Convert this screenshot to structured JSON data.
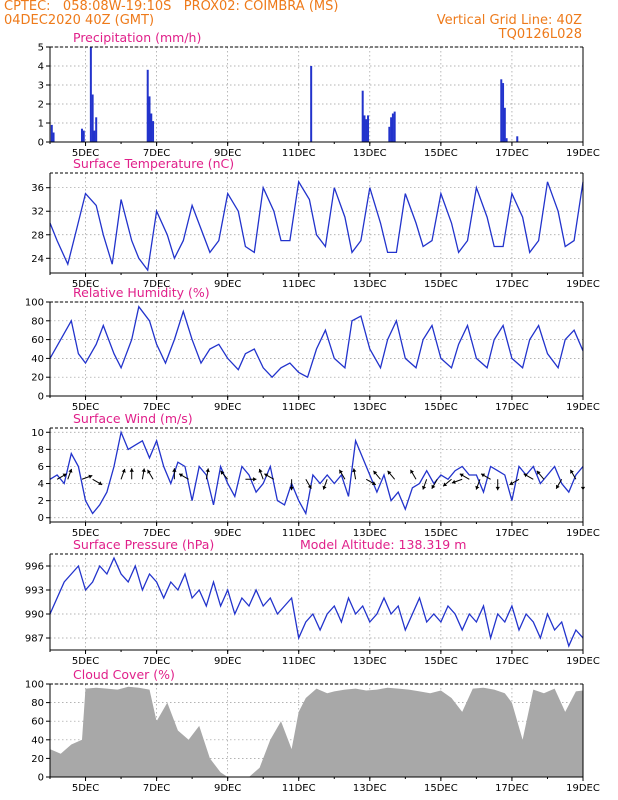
{
  "header": {
    "left1": "CPTEC:   058:08W-19:10S   PROX02: COIMBRA (MS)",
    "left2": "04DEC2020 40Z (GMT)",
    "right1": "Vertical Grid Line: 40Z",
    "right2": "TQ0126L028"
  },
  "x_axis": {
    "ticks": [
      "5DEC",
      "7DEC",
      "9DEC",
      "11DEC",
      "13DEC",
      "15DEC",
      "17DEC",
      "19DEC"
    ],
    "tick_days": [
      5,
      7,
      9,
      11,
      13,
      15,
      17,
      19
    ],
    "range": [
      4,
      19
    ]
  },
  "colors": {
    "title": "#e0208a",
    "header": "#ee7a1a",
    "series": "#2233cc",
    "cloud": "#a8a8a8"
  },
  "chart_data": [
    {
      "type": "bar",
      "title": "Precipitation (mm/h)",
      "ylim": [
        0,
        5
      ],
      "yticks": [
        0,
        1,
        2,
        3,
        4,
        5
      ],
      "x": [
        4.05,
        4.1,
        4.9,
        4.95,
        5.15,
        5.2,
        5.25,
        5.3,
        6.75,
        6.8,
        6.85,
        6.9,
        11.35,
        12.8,
        12.85,
        12.9,
        12.95,
        13.55,
        13.6,
        13.65,
        13.7,
        16.7,
        16.75,
        16.8,
        16.85,
        17.15
      ],
      "values": [
        0.9,
        0.5,
        0.7,
        0.6,
        5.0,
        2.5,
        0.6,
        1.3,
        3.8,
        2.4,
        1.5,
        1.1,
        4.0,
        2.7,
        1.4,
        1.2,
        1.4,
        0.8,
        1.3,
        1.5,
        1.6,
        3.3,
        3.1,
        1.8,
        0.2,
        0.3
      ]
    },
    {
      "type": "line",
      "title": "Surface Temperature (nC)",
      "ylim": [
        21.5,
        38.5
      ],
      "yticks": [
        24,
        28,
        32,
        36
      ],
      "x": [
        4,
        4.2,
        4.5,
        4.75,
        5,
        5.3,
        5.5,
        5.75,
        6,
        6.3,
        6.5,
        6.75,
        7,
        7.3,
        7.5,
        7.75,
        8,
        8.25,
        8.5,
        8.75,
        9,
        9.3,
        9.5,
        9.75,
        10,
        10.3,
        10.5,
        10.75,
        11,
        11.3,
        11.5,
        11.75,
        12,
        12.3,
        12.5,
        12.75,
        13,
        13.3,
        13.5,
        13.75,
        14,
        14.3,
        14.5,
        14.75,
        15,
        15.3,
        15.5,
        15.75,
        16,
        16.3,
        16.5,
        16.75,
        17,
        17.3,
        17.5,
        17.75,
        18,
        18.3,
        18.5,
        18.75,
        19
      ],
      "values": [
        30,
        27,
        23,
        29,
        35,
        33,
        28,
        23,
        34,
        27,
        24,
        22,
        32,
        28,
        24,
        27,
        33,
        29,
        25,
        27,
        35,
        32,
        26,
        25,
        36,
        32,
        27,
        27,
        37,
        34,
        28,
        26,
        36,
        31,
        25,
        27,
        36,
        30,
        25,
        25,
        35,
        30,
        26,
        27,
        35,
        30,
        25,
        27,
        36,
        31,
        26,
        26,
        35,
        31,
        25,
        27,
        37,
        32,
        26,
        27,
        37
      ]
    },
    {
      "type": "line",
      "title": "Relative Humidity (%)",
      "ylim": [
        0,
        100
      ],
      "yticks": [
        0,
        20,
        40,
        60,
        80,
        100
      ],
      "x": [
        4,
        4.3,
        4.6,
        4.8,
        5,
        5.3,
        5.5,
        5.8,
        6,
        6.3,
        6.5,
        6.8,
        7,
        7.25,
        7.5,
        7.75,
        8,
        8.25,
        8.5,
        8.75,
        9,
        9.3,
        9.5,
        9.75,
        10,
        10.25,
        10.5,
        10.75,
        11,
        11.25,
        11.5,
        11.75,
        12,
        12.3,
        12.5,
        12.75,
        13,
        13.3,
        13.5,
        13.75,
        14,
        14.3,
        14.5,
        14.75,
        15,
        15.3,
        15.5,
        15.75,
        16,
        16.3,
        16.5,
        16.75,
        17,
        17.3,
        17.5,
        17.75,
        18,
        18.3,
        18.5,
        18.75,
        19
      ],
      "values": [
        40,
        60,
        80,
        45,
        35,
        55,
        75,
        45,
        30,
        60,
        95,
        80,
        55,
        35,
        60,
        90,
        60,
        35,
        50,
        55,
        40,
        28,
        45,
        50,
        30,
        20,
        30,
        35,
        25,
        20,
        50,
        70,
        40,
        30,
        80,
        85,
        50,
        30,
        60,
        80,
        40,
        30,
        60,
        75,
        40,
        30,
        55,
        75,
        40,
        30,
        60,
        75,
        40,
        30,
        60,
        75,
        45,
        30,
        60,
        70,
        48
      ]
    },
    {
      "type": "line",
      "title": "Surface Wind (m/s)",
      "ylim": [
        -0.5,
        10.5
      ],
      "yticks": [
        0,
        2,
        4,
        6,
        8,
        10
      ],
      "x": [
        4,
        4.2,
        4.4,
        4.6,
        4.8,
        5,
        5.2,
        5.4,
        5.6,
        5.8,
        6,
        6.2,
        6.4,
        6.6,
        6.8,
        7,
        7.2,
        7.4,
        7.6,
        7.8,
        8,
        8.2,
        8.4,
        8.6,
        8.8,
        9,
        9.2,
        9.4,
        9.6,
        9.8,
        10,
        10.2,
        10.4,
        10.6,
        10.8,
        11,
        11.2,
        11.4,
        11.6,
        11.8,
        12,
        12.2,
        12.4,
        12.6,
        12.8,
        13,
        13.2,
        13.4,
        13.6,
        13.8,
        14,
        14.2,
        14.4,
        14.6,
        14.8,
        15,
        15.2,
        15.4,
        15.6,
        15.8,
        16,
        16.2,
        16.4,
        16.6,
        16.8,
        17,
        17.2,
        17.4,
        17.6,
        17.8,
        18,
        18.2,
        18.4,
        18.6,
        18.8,
        19
      ],
      "values": [
        4.5,
        5,
        4,
        7.5,
        6,
        2,
        0.5,
        1.5,
        3,
        6,
        10,
        8,
        8.5,
        9,
        7,
        9,
        6,
        4,
        6.5,
        6,
        2,
        6,
        5,
        1.5,
        6,
        4,
        2.5,
        6,
        5,
        3,
        4,
        6,
        2,
        1.5,
        4,
        2,
        0.5,
        5,
        4,
        5,
        4,
        5,
        2.5,
        9,
        7,
        5,
        3,
        5,
        2,
        3,
        1,
        3.5,
        4,
        5.5,
        4,
        5,
        4.5,
        5.5,
        6,
        5,
        5,
        3,
        6,
        5.5,
        5,
        2,
        6,
        5,
        6,
        4,
        5,
        6,
        4,
        3,
        5,
        6
      ]
    },
    {
      "type": "line",
      "title": "Surface Pressure (hPa)",
      "subtitle": "Model Altitude: 138.319 m",
      "ylim": [
        985.5,
        997.5
      ],
      "yticks": [
        987,
        990,
        993,
        996
      ],
      "x": [
        4,
        4.2,
        4.4,
        4.6,
        4.8,
        5,
        5.2,
        5.4,
        5.6,
        5.8,
        6,
        6.2,
        6.4,
        6.6,
        6.8,
        7,
        7.2,
        7.4,
        7.6,
        7.8,
        8,
        8.2,
        8.4,
        8.6,
        8.8,
        9,
        9.2,
        9.4,
        9.6,
        9.8,
        10,
        10.2,
        10.4,
        10.6,
        10.8,
        11,
        11.2,
        11.4,
        11.6,
        11.8,
        12,
        12.2,
        12.4,
        12.6,
        12.8,
        13,
        13.2,
        13.4,
        13.6,
        13.8,
        14,
        14.2,
        14.4,
        14.6,
        14.8,
        15,
        15.2,
        15.4,
        15.6,
        15.8,
        16,
        16.2,
        16.4,
        16.6,
        16.8,
        17,
        17.2,
        17.4,
        17.6,
        17.8,
        18,
        18.2,
        18.4,
        18.6,
        18.8,
        19
      ],
      "values": [
        990,
        992,
        994,
        995,
        996,
        993,
        994,
        996,
        995,
        997,
        995,
        994,
        996,
        993,
        995,
        994,
        992,
        994,
        993,
        995,
        992,
        993,
        991,
        994,
        991,
        993,
        990,
        992,
        991,
        993,
        991,
        992,
        990,
        991,
        992,
        987,
        989,
        990,
        988,
        990,
        991,
        989,
        992,
        990,
        991,
        989,
        990,
        992,
        990,
        991,
        988,
        990,
        992,
        989,
        990,
        989,
        991,
        990,
        988,
        990,
        989,
        991,
        987,
        990,
        989,
        991,
        988,
        990,
        989,
        987,
        990,
        988,
        989,
        986,
        988,
        987
      ]
    },
    {
      "type": "area",
      "title": "Cloud Cover (%)",
      "ylim": [
        0,
        100
      ],
      "yticks": [
        0,
        20,
        40,
        60,
        80,
        100
      ],
      "x": [
        4,
        4.3,
        4.6,
        4.9,
        5.0,
        5.3,
        5.6,
        5.9,
        6.2,
        6.5,
        6.8,
        7,
        7.3,
        7.6,
        7.9,
        8.2,
        8.5,
        8.8,
        9,
        9.3,
        9.6,
        9.9,
        10.2,
        10.5,
        10.8,
        11,
        11.2,
        11.5,
        11.8,
        12,
        12.3,
        12.6,
        12.9,
        13.2,
        13.5,
        13.8,
        14.1,
        14.4,
        14.7,
        15,
        15.3,
        15.6,
        15.9,
        16.2,
        16.5,
        16.8,
        17,
        17.3,
        17.6,
        17.9,
        18.2,
        18.5,
        18.8,
        19
      ],
      "values": [
        30,
        25,
        35,
        40,
        95,
        96,
        95,
        94,
        97,
        96,
        94,
        60,
        80,
        50,
        40,
        55,
        20,
        5,
        0,
        0,
        0,
        10,
        40,
        60,
        30,
        70,
        85,
        95,
        90,
        92,
        94,
        95,
        93,
        94,
        96,
        95,
        94,
        92,
        90,
        93,
        85,
        70,
        95,
        96,
        94,
        90,
        80,
        40,
        94,
        90,
        95,
        70,
        92,
        93
      ]
    }
  ],
  "wind_arrows": [
    {
      "x": 4.2,
      "dir": 60
    },
    {
      "x": 4.5,
      "dir": 20
    },
    {
      "x": 4.9,
      "dir": 70
    },
    {
      "x": 5.2,
      "dir": 120
    },
    {
      "x": 6.0,
      "dir": 20
    },
    {
      "x": 6.3,
      "dir": 0
    },
    {
      "x": 6.6,
      "dir": 10
    },
    {
      "x": 6.9,
      "dir": -30
    },
    {
      "x": 7.5,
      "dir": 0
    },
    {
      "x": 7.9,
      "dir": -60
    },
    {
      "x": 8.4,
      "dir": 10
    },
    {
      "x": 9.0,
      "dir": -40
    },
    {
      "x": 9.5,
      "dir": 90
    },
    {
      "x": 10.0,
      "dir": -20
    },
    {
      "x": 10.3,
      "dir": -60
    },
    {
      "x": 10.8,
      "dir": 180
    },
    {
      "x": 11.2,
      "dir": 150
    },
    {
      "x": 11.8,
      "dir": 200
    },
    {
      "x": 12.3,
      "dir": -30
    },
    {
      "x": 12.6,
      "dir": -10
    },
    {
      "x": 12.9,
      "dir": 120
    },
    {
      "x": 13.3,
      "dir": -40
    },
    {
      "x": 13.7,
      "dir": -40
    },
    {
      "x": 14.3,
      "dir": -30
    },
    {
      "x": 14.6,
      "dir": 200
    },
    {
      "x": 14.9,
      "dir": 210
    },
    {
      "x": 15.3,
      "dir": 230
    },
    {
      "x": 15.6,
      "dir": 250
    },
    {
      "x": 15.8,
      "dir": -60
    },
    {
      "x": 16.1,
      "dir": 200
    },
    {
      "x": 16.4,
      "dir": -60
    },
    {
      "x": 16.6,
      "dir": 180
    },
    {
      "x": 17.2,
      "dir": 240
    },
    {
      "x": 17.6,
      "dir": -60
    },
    {
      "x": 17.9,
      "dir": -40
    },
    {
      "x": 18.4,
      "dir": 210
    },
    {
      "x": 18.8,
      "dir": -30
    },
    {
      "x": 19.0,
      "dir": 180
    }
  ]
}
